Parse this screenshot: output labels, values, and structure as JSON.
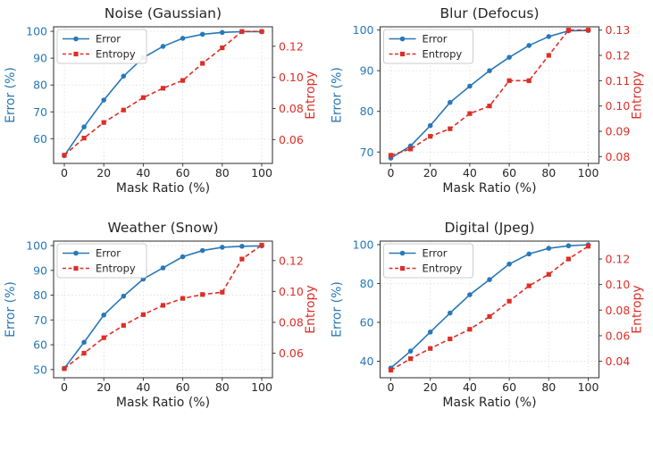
{
  "figure": {
    "background": "#ffffff",
    "colors": {
      "error_blue": "#2878b8",
      "entropy_red": "#dc2f27",
      "spine": "#3c3c3c",
      "grid": "#d9d9d9",
      "text_dark": "#262626",
      "legend_border": "#cccccc",
      "legend_bg": "#ffffff"
    }
  },
  "chart_data": [
    {
      "type": "line",
      "title": "Noise (Gaussian)",
      "xlabel": "Mask Ratio (%)",
      "ylabel_left": "Error (%)",
      "ylabel_right": "Entropy",
      "legend": [
        "Error",
        "Entropy"
      ],
      "legend_position": "upper-left",
      "grid": true,
      "x": [
        0,
        10,
        20,
        30,
        40,
        50,
        60,
        70,
        80,
        90,
        100
      ],
      "x_ticks": [
        0,
        20,
        40,
        60,
        80,
        100
      ],
      "left_ticks": [
        60,
        70,
        80,
        90,
        100
      ],
      "left_range": [
        50.8,
        101.7
      ],
      "right_ticks": [
        0.06,
        0.08,
        0.1,
        0.12
      ],
      "right_tick_labels": [
        "0.06",
        "0.08",
        "0.10",
        "0.12"
      ],
      "right_range": [
        0.0447,
        0.1325
      ],
      "series": [
        {
          "name": "Error",
          "axis": "left",
          "style": "solid",
          "marker": "circle",
          "values": [
            53.7,
            64.4,
            74.4,
            83.3,
            90.2,
            94.4,
            97.4,
            98.9,
            99.6,
            99.9,
            99.9
          ]
        },
        {
          "name": "Entropy",
          "axis": "right",
          "style": "dashed",
          "marker": "square",
          "values": [
            0.05,
            0.061,
            0.071,
            0.079,
            0.087,
            0.093,
            0.098,
            0.109,
            0.119,
            0.1295,
            0.1295
          ]
        }
      ]
    },
    {
      "type": "line",
      "title": "Blur (Defocus)",
      "xlabel": "Mask Ratio (%)",
      "ylabel_left": "Error (%)",
      "ylabel_right": "Entropy",
      "legend": [
        "Error",
        "Entropy"
      ],
      "legend_position": "upper-left",
      "grid": true,
      "x": [
        0,
        10,
        20,
        30,
        40,
        50,
        60,
        70,
        80,
        90,
        100
      ],
      "x_ticks": [
        0,
        20,
        40,
        60,
        80,
        100
      ],
      "left_ticks": [
        70,
        80,
        90,
        100
      ],
      "left_range": [
        67.2,
        100.8
      ],
      "right_ticks": [
        0.08,
        0.09,
        0.1,
        0.11,
        0.12,
        0.13
      ],
      "right_tick_labels": [
        "0.08",
        "0.09",
        "0.10",
        "0.11",
        "0.12",
        "0.13"
      ],
      "right_range": [
        0.0773,
        0.1313
      ],
      "series": [
        {
          "name": "Error",
          "axis": "left",
          "style": "solid",
          "marker": "circle",
          "values": [
            68.5,
            71.5,
            76.5,
            82.2,
            86.2,
            90.0,
            93.3,
            96.2,
            98.4,
            99.8,
            99.9
          ]
        },
        {
          "name": "Entropy",
          "axis": "right",
          "style": "dashed",
          "marker": "square",
          "values": [
            0.0805,
            0.083,
            0.088,
            0.091,
            0.097,
            0.1,
            0.11,
            0.11,
            0.12,
            0.13,
            0.13
          ]
        }
      ]
    },
    {
      "type": "line",
      "title": "Weather (Snow)",
      "xlabel": "Mask Ratio (%)",
      "ylabel_left": "Error (%)",
      "ylabel_right": "Entropy",
      "legend": [
        "Error",
        "Entropy"
      ],
      "legend_position": "upper-left",
      "grid": true,
      "x": [
        0,
        10,
        20,
        30,
        40,
        50,
        60,
        70,
        80,
        90,
        100
      ],
      "x_ticks": [
        0,
        20,
        40,
        60,
        80,
        100
      ],
      "left_ticks": [
        50,
        60,
        70,
        80,
        90,
        100
      ],
      "left_range": [
        46.7,
        101.8
      ],
      "right_ticks": [
        0.06,
        0.08,
        0.1,
        0.12
      ],
      "right_tick_labels": [
        "0.06",
        "0.08",
        "0.10",
        "0.12"
      ],
      "right_range": [
        0.0441,
        0.1326
      ],
      "series": [
        {
          "name": "Error",
          "axis": "left",
          "style": "solid",
          "marker": "circle",
          "values": [
            50.5,
            61.0,
            72.0,
            79.6,
            86.5,
            91.0,
            95.5,
            98.0,
            99.3,
            99.7,
            99.9
          ]
        },
        {
          "name": "Entropy",
          "axis": "right",
          "style": "dashed",
          "marker": "square",
          "values": [
            0.05,
            0.06,
            0.07,
            0.078,
            0.085,
            0.091,
            0.0955,
            0.098,
            0.0995,
            0.121,
            0.13
          ]
        }
      ]
    },
    {
      "type": "line",
      "title": "Digital (Jpeg)",
      "xlabel": "Mask Ratio (%)",
      "ylabel_left": "Error (%)",
      "ylabel_right": "Entropy",
      "legend": [
        "Error",
        "Entropy"
      ],
      "legend_position": "upper-left",
      "grid": true,
      "x": [
        0,
        10,
        20,
        30,
        40,
        50,
        60,
        70,
        80,
        90,
        100
      ],
      "x_ticks": [
        0,
        20,
        40,
        60,
        80,
        100
      ],
      "left_ticks": [
        40,
        60,
        80,
        100
      ],
      "left_range": [
        31.5,
        101.8
      ],
      "right_ticks": [
        0.04,
        0.06,
        0.08,
        0.1,
        0.12
      ],
      "right_tick_labels": [
        "0.04",
        "0.06",
        "0.08",
        "0.10",
        "0.12"
      ],
      "right_range": [
        0.0271,
        0.134
      ],
      "series": [
        {
          "name": "Error",
          "axis": "left",
          "style": "solid",
          "marker": "circle",
          "values": [
            36.5,
            45.2,
            55.0,
            64.8,
            74.2,
            82.0,
            90.0,
            95.2,
            98.1,
            99.4,
            99.9
          ]
        },
        {
          "name": "Entropy",
          "axis": "right",
          "style": "dashed",
          "marker": "square",
          "values": [
            0.033,
            0.042,
            0.05,
            0.0575,
            0.065,
            0.075,
            0.087,
            0.099,
            0.108,
            0.12,
            0.13
          ]
        }
      ]
    }
  ]
}
